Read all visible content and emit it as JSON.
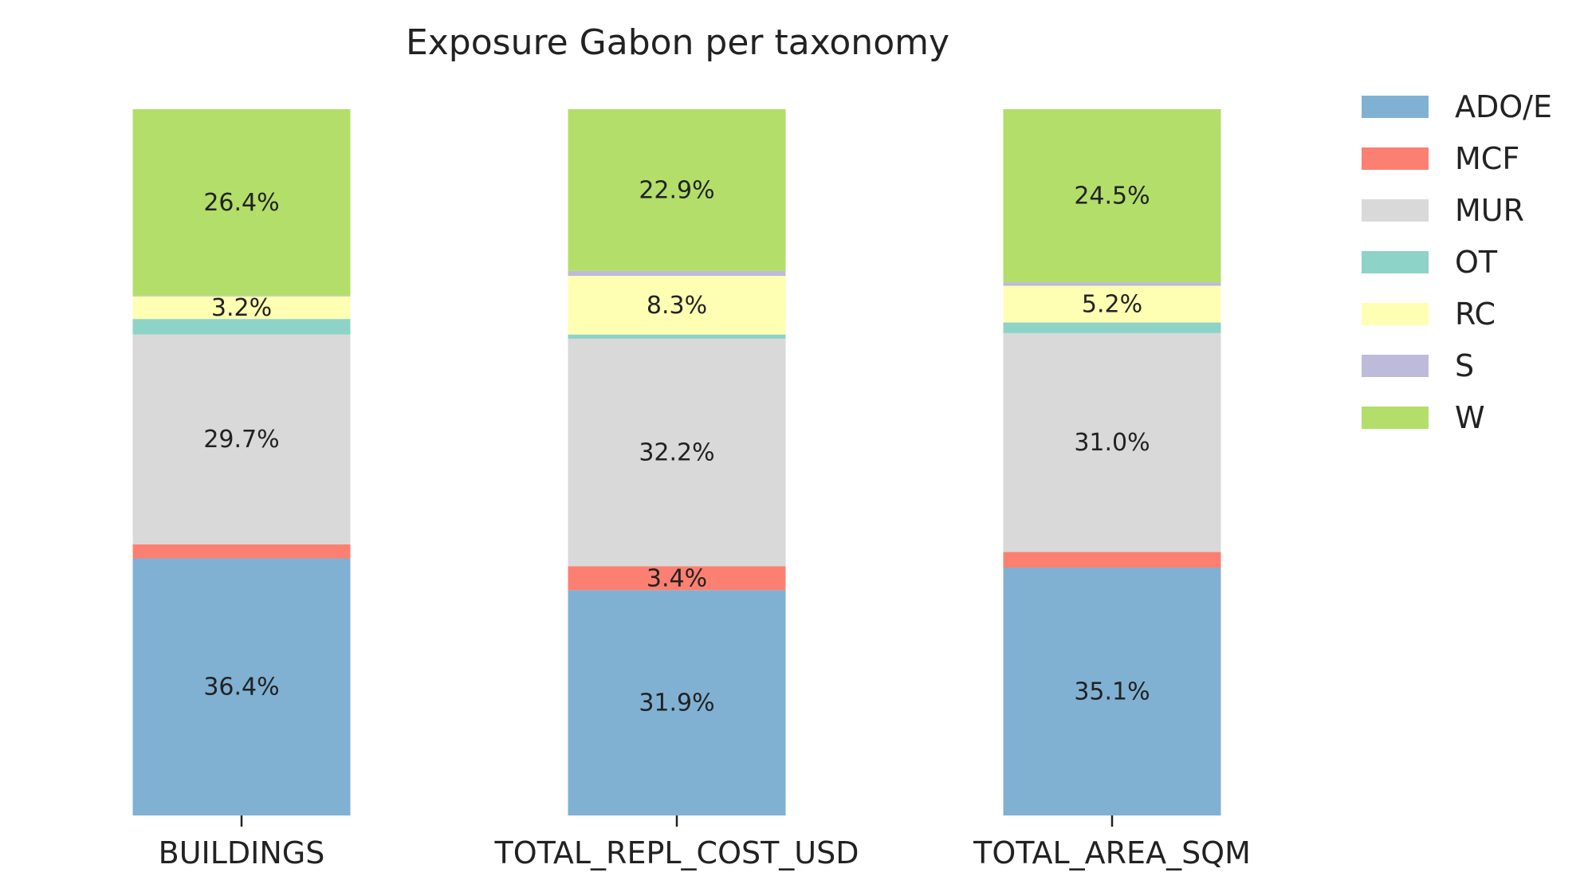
{
  "chart_data": {
    "type": "bar",
    "stacked": true,
    "normalized": true,
    "title": "Exposure Gabon per taxonomy",
    "categories": [
      "BUILDINGS",
      "TOTAL_REPL_COST_USD",
      "TOTAL_AREA_SQM"
    ],
    "ylim": [
      0,
      100
    ],
    "grid": false,
    "legend_position": "right",
    "series": [
      {
        "name": "ADO/E",
        "color": "#80b1d3",
        "values": [
          36.4,
          31.9,
          35.1
        ],
        "labels": [
          "36.4%",
          "31.9%",
          "35.1%"
        ]
      },
      {
        "name": "MCF",
        "color": "#fb8072",
        "values": [
          2.0,
          3.4,
          2.2
        ],
        "labels": [
          "",
          "3.4%",
          ""
        ]
      },
      {
        "name": "MUR",
        "color": "#d9d9d9",
        "values": [
          29.7,
          32.2,
          31.0
        ],
        "labels": [
          "29.7%",
          "32.2%",
          "31.0%"
        ]
      },
      {
        "name": "OT",
        "color": "#8dd3c7",
        "values": [
          2.2,
          0.6,
          1.5
        ],
        "labels": [
          "",
          "",
          ""
        ]
      },
      {
        "name": "RC",
        "color": "#ffffb3",
        "values": [
          3.2,
          8.3,
          5.2
        ],
        "labels": [
          "3.2%",
          "8.3%",
          "5.2%"
        ]
      },
      {
        "name": "S",
        "color": "#bebada",
        "values": [
          0.1,
          0.7,
          0.5
        ],
        "labels": [
          "",
          "",
          ""
        ]
      },
      {
        "name": "W",
        "color": "#b3de69",
        "values": [
          26.4,
          22.9,
          24.5
        ],
        "labels": [
          "26.4%",
          "22.9%",
          "24.5%"
        ]
      }
    ]
  }
}
